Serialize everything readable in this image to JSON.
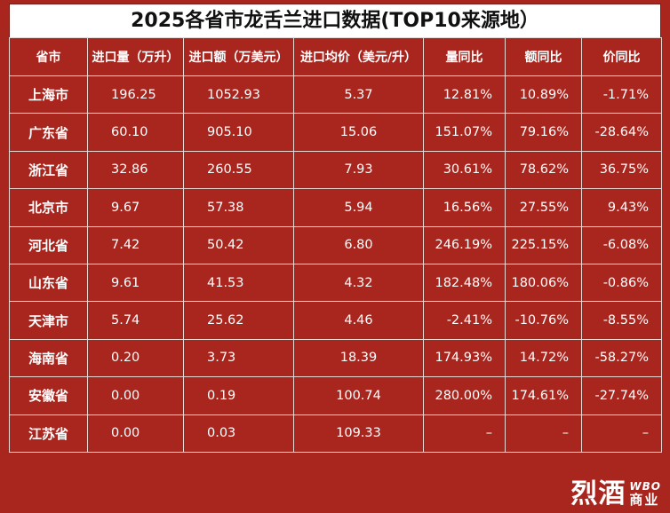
{
  "chart_data": {
    "type": "table",
    "title": "2025各省市龙舌兰进口数据(TOP10来源地）",
    "columns": [
      "省市",
      "进口量（万升）",
      "进口额（万美元）",
      "进口均价（美元/升）",
      "量同比",
      "额同比",
      "价同比"
    ],
    "rows": [
      [
        "上海市",
        "196.25",
        "1052.93",
        "5.37",
        "12.81%",
        "10.89%",
        "-1.71%"
      ],
      [
        "广东省",
        "60.10",
        "905.10",
        "15.06",
        "151.07%",
        "79.16%",
        "-28.64%"
      ],
      [
        "浙江省",
        "32.86",
        "260.55",
        "7.93",
        "30.61%",
        "78.62%",
        "36.75%"
      ],
      [
        "北京市",
        "9.67",
        "57.38",
        "5.94",
        "16.56%",
        "27.55%",
        "9.43%"
      ],
      [
        "河北省",
        "7.42",
        "50.42",
        "6.80",
        "246.19%",
        "225.15%",
        "-6.08%"
      ],
      [
        "山东省",
        "9.61",
        "41.53",
        "4.32",
        "182.48%",
        "180.06%",
        "-0.86%"
      ],
      [
        "天津市",
        "5.74",
        "25.62",
        "4.46",
        "-2.41%",
        "-10.76%",
        "-8.55%"
      ],
      [
        "海南省",
        "0.20",
        "3.73",
        "18.39",
        "174.93%",
        "14.72%",
        "-58.27%"
      ],
      [
        "安徽省",
        "0.00",
        "0.19",
        "100.74",
        "280.00%",
        "174.61%",
        "-27.74%"
      ],
      [
        "江苏省",
        "0.00",
        "0.03",
        "109.33",
        "–",
        "–",
        "–"
      ]
    ]
  },
  "watermark": {
    "big": "烈酒",
    "en": "WBO",
    "cn": "商业"
  },
  "colors": {
    "background": "#a9261f",
    "title_bg": "#ffffff",
    "grid": "#e8d6d2"
  }
}
